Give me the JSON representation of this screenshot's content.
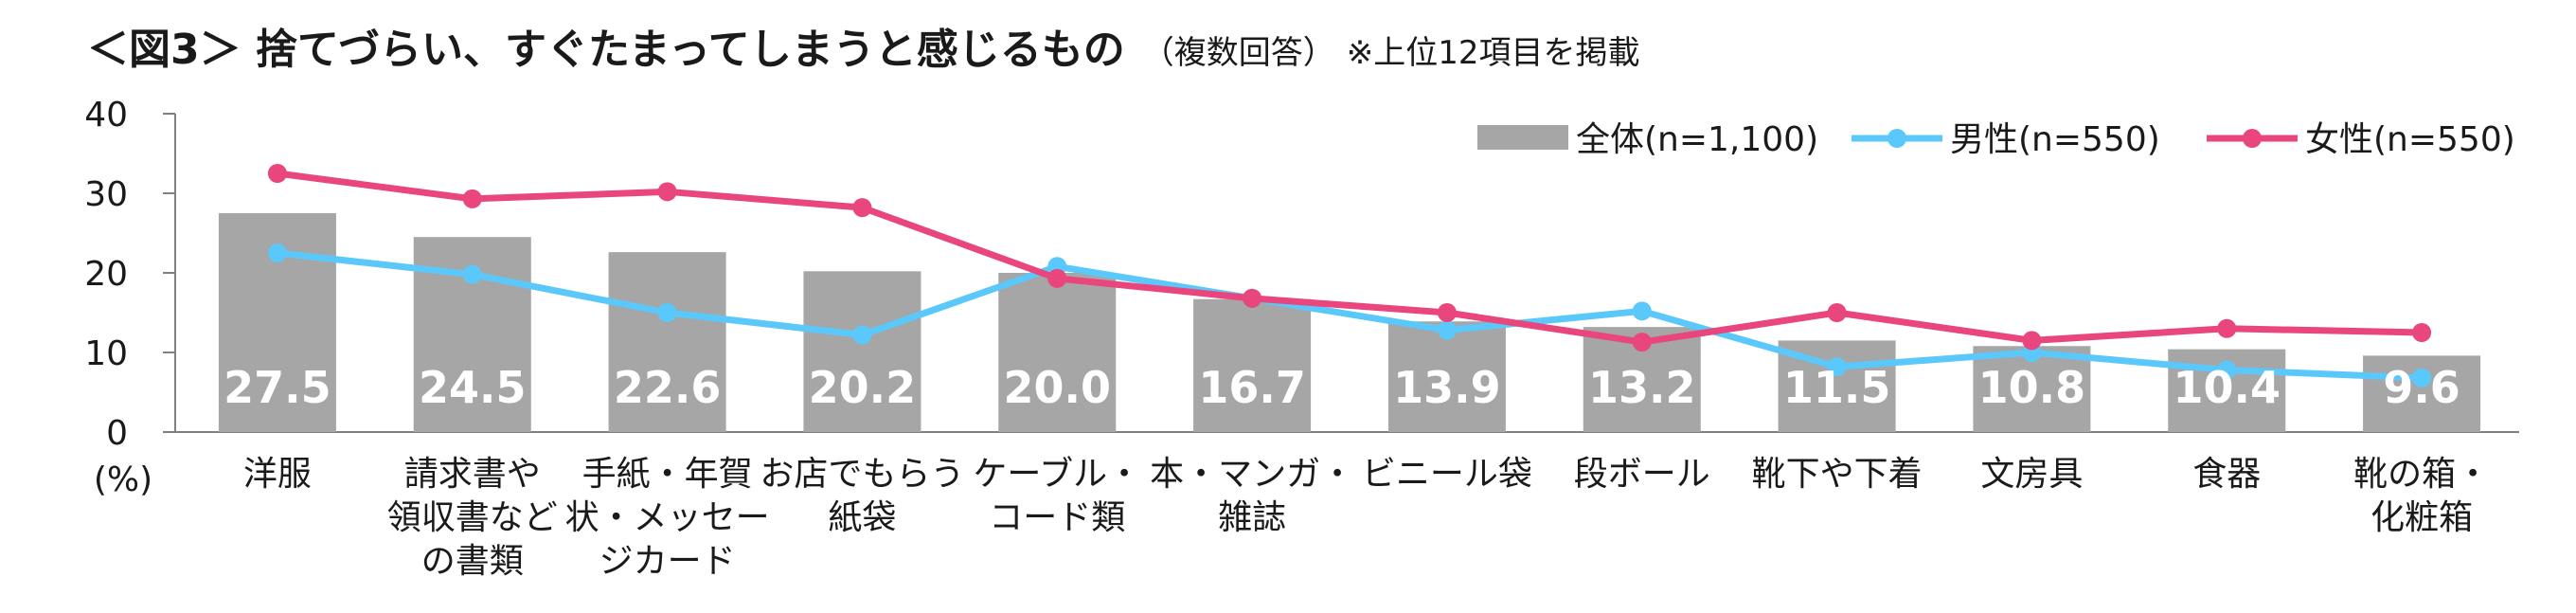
{
  "title": {
    "main": "＜図3＞ 捨てづらい、すぐたまってしまうと感じるもの",
    "sub": "（複数回答）",
    "note": "※上位12項目を掲載"
  },
  "chart_data": {
    "type": "bar",
    "categories": [
      [
        "洋服"
      ],
      [
        "請求書や",
        "領収書など",
        "の書類"
      ],
      [
        "手紙・年賀",
        "状・メッセー",
        "ジカード"
      ],
      [
        "お店でもらう",
        "紙袋"
      ],
      [
        "ケーブル・",
        "コード類"
      ],
      [
        "本・マンガ・",
        "雑誌"
      ],
      [
        "ビニール袋"
      ],
      [
        "段ボール"
      ],
      [
        "靴下や下着"
      ],
      [
        "文房具"
      ],
      [
        "食器"
      ],
      [
        "靴の箱・",
        "化粧箱"
      ]
    ],
    "series": [
      {
        "name": "全体(n=1,100)",
        "kind": "bar",
        "color": "#a6a6a6",
        "values": [
          27.5,
          24.5,
          22.6,
          20.2,
          20.0,
          16.7,
          13.9,
          13.2,
          11.5,
          10.8,
          10.4,
          9.6
        ],
        "labels": [
          "27.5",
          "24.5",
          "22.6",
          "20.2",
          "20.0",
          "16.7",
          "13.9",
          "13.2",
          "11.5",
          "10.8",
          "10.4",
          "9.6"
        ]
      },
      {
        "name": "男性(n=550)",
        "kind": "line",
        "color": "#5ac8fa",
        "values": [
          22.5,
          19.8,
          15.0,
          12.2,
          20.8,
          16.8,
          12.8,
          15.2,
          8.2,
          10.0,
          7.8,
          6.8
        ]
      },
      {
        "name": "女性(n=550)",
        "kind": "line",
        "color": "#e8467c",
        "values": [
          32.5,
          29.3,
          30.2,
          28.2,
          19.3,
          16.8,
          15.0,
          11.3,
          15.0,
          11.5,
          13.0,
          12.5
        ]
      }
    ],
    "y_ticks": [
      "0",
      "10",
      "20",
      "30",
      "40"
    ],
    "ylim": [
      0,
      40
    ],
    "y_unit": "(%)",
    "legend_position": "top-right"
  }
}
